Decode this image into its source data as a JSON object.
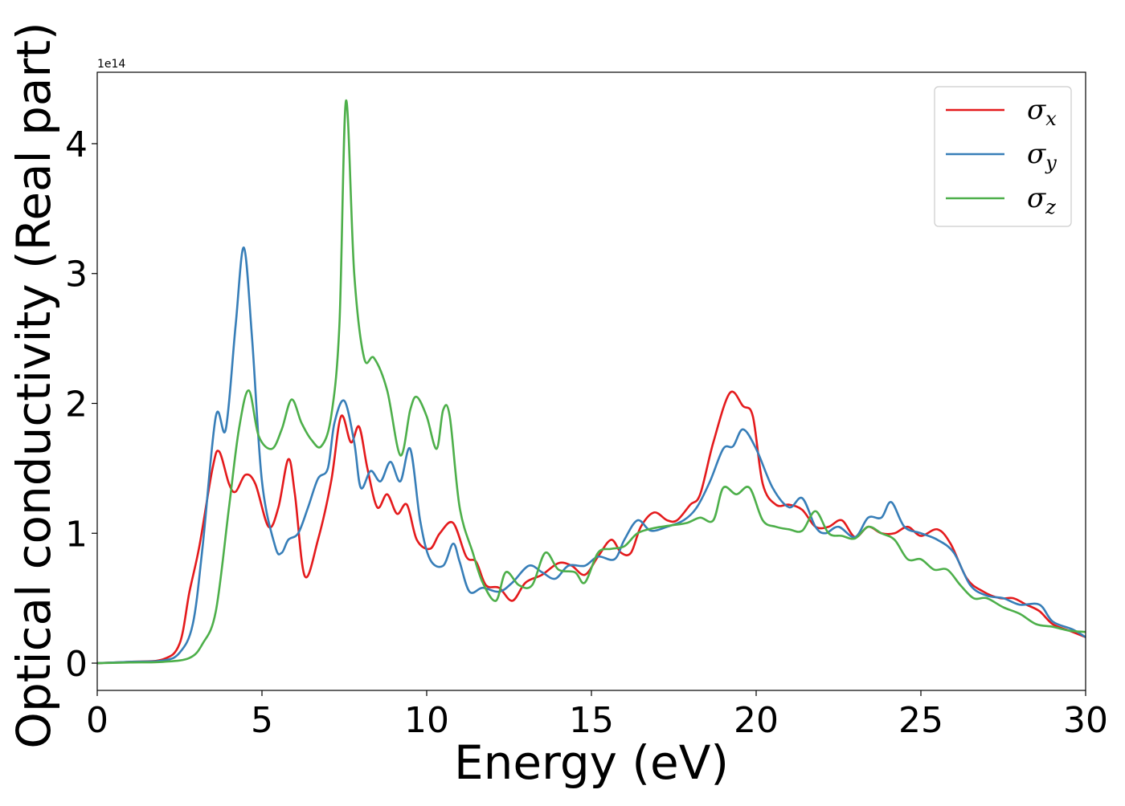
{
  "chart_data": {
    "type": "line",
    "xlabel": "Energy (eV)",
    "ylabel": "Optical conductivity (Real part)",
    "y_offset_label": "1e14",
    "xlim": [
      0,
      30
    ],
    "ylim": [
      -0.21,
      4.55
    ],
    "x_ticks": [
      0,
      5,
      10,
      15,
      20,
      25,
      30
    ],
    "x_tick_labels": [
      "0",
      "5",
      "10",
      "15",
      "20",
      "25",
      "30"
    ],
    "y_ticks": [
      0,
      1,
      2,
      3,
      4
    ],
    "y_tick_labels": [
      "0",
      "1",
      "2",
      "3",
      "4"
    ],
    "grid": false,
    "legend_position": "top-right",
    "series": [
      {
        "name": "σx",
        "base": "σ",
        "sub": "x",
        "color": "#e41a1c",
        "points": [
          [
            0,
            0
          ],
          [
            1,
            0.01
          ],
          [
            2,
            0.03
          ],
          [
            2.5,
            0.15
          ],
          [
            2.8,
            0.55
          ],
          [
            3.1,
            0.9
          ],
          [
            3.5,
            1.5
          ],
          [
            3.7,
            1.63
          ],
          [
            4.0,
            1.38
          ],
          [
            4.2,
            1.32
          ],
          [
            4.5,
            1.45
          ],
          [
            4.8,
            1.38
          ],
          [
            5.2,
            1.05
          ],
          [
            5.5,
            1.2
          ],
          [
            5.8,
            1.57
          ],
          [
            6.0,
            1.3
          ],
          [
            6.3,
            0.67
          ],
          [
            6.7,
            0.95
          ],
          [
            7.1,
            1.4
          ],
          [
            7.4,
            1.9
          ],
          [
            7.7,
            1.7
          ],
          [
            7.95,
            1.82
          ],
          [
            8.2,
            1.5
          ],
          [
            8.5,
            1.2
          ],
          [
            8.8,
            1.3
          ],
          [
            9.1,
            1.15
          ],
          [
            9.4,
            1.22
          ],
          [
            9.7,
            0.95
          ],
          [
            10.1,
            0.88
          ],
          [
            10.4,
            1.0
          ],
          [
            10.8,
            1.08
          ],
          [
            11.2,
            0.82
          ],
          [
            11.5,
            0.78
          ],
          [
            11.8,
            0.6
          ],
          [
            12.2,
            0.58
          ],
          [
            12.6,
            0.48
          ],
          [
            13.0,
            0.62
          ],
          [
            13.5,
            0.68
          ],
          [
            14.0,
            0.77
          ],
          [
            14.4,
            0.75
          ],
          [
            14.8,
            0.68
          ],
          [
            15.2,
            0.82
          ],
          [
            15.6,
            0.95
          ],
          [
            15.9,
            0.85
          ],
          [
            16.2,
            0.85
          ],
          [
            16.5,
            1.05
          ],
          [
            16.9,
            1.16
          ],
          [
            17.3,
            1.1
          ],
          [
            17.6,
            1.1
          ],
          [
            18.0,
            1.22
          ],
          [
            18.3,
            1.3
          ],
          [
            18.7,
            1.7
          ],
          [
            19.2,
            2.08
          ],
          [
            19.6,
            1.98
          ],
          [
            19.9,
            1.9
          ],
          [
            20.2,
            1.38
          ],
          [
            20.6,
            1.22
          ],
          [
            21.0,
            1.22
          ],
          [
            21.4,
            1.18
          ],
          [
            21.8,
            1.05
          ],
          [
            22.2,
            1.05
          ],
          [
            22.6,
            1.1
          ],
          [
            23.0,
            0.97
          ],
          [
            23.4,
            1.05
          ],
          [
            23.8,
            1.0
          ],
          [
            24.2,
            1.0
          ],
          [
            24.6,
            1.05
          ],
          [
            25.0,
            0.98
          ],
          [
            25.5,
            1.03
          ],
          [
            25.9,
            0.92
          ],
          [
            26.4,
            0.65
          ],
          [
            26.9,
            0.55
          ],
          [
            27.4,
            0.5
          ],
          [
            27.8,
            0.5
          ],
          [
            28.2,
            0.45
          ],
          [
            28.6,
            0.4
          ],
          [
            29.0,
            0.3
          ],
          [
            29.5,
            0.25
          ],
          [
            30.0,
            0.2
          ]
        ]
      },
      {
        "name": "σy",
        "base": "σ",
        "sub": "y",
        "color": "#377eb8",
        "points": [
          [
            0,
            0
          ],
          [
            1,
            0.01
          ],
          [
            2,
            0.02
          ],
          [
            2.5,
            0.08
          ],
          [
            2.9,
            0.3
          ],
          [
            3.2,
            0.9
          ],
          [
            3.6,
            1.9
          ],
          [
            3.9,
            1.8
          ],
          [
            4.2,
            2.6
          ],
          [
            4.45,
            3.2
          ],
          [
            4.7,
            2.5
          ],
          [
            5.0,
            1.4
          ],
          [
            5.4,
            0.9
          ],
          [
            5.6,
            0.85
          ],
          [
            5.8,
            0.95
          ],
          [
            6.1,
            1.0
          ],
          [
            6.4,
            1.2
          ],
          [
            6.7,
            1.42
          ],
          [
            7.0,
            1.5
          ],
          [
            7.2,
            1.85
          ],
          [
            7.5,
            2.02
          ],
          [
            7.8,
            1.7
          ],
          [
            8.0,
            1.35
          ],
          [
            8.3,
            1.48
          ],
          [
            8.6,
            1.4
          ],
          [
            8.9,
            1.55
          ],
          [
            9.2,
            1.4
          ],
          [
            9.5,
            1.65
          ],
          [
            9.8,
            1.1
          ],
          [
            10.1,
            0.8
          ],
          [
            10.5,
            0.75
          ],
          [
            10.8,
            0.92
          ],
          [
            11.0,
            0.78
          ],
          [
            11.3,
            0.55
          ],
          [
            11.7,
            0.58
          ],
          [
            12.2,
            0.55
          ],
          [
            12.6,
            0.62
          ],
          [
            13.1,
            0.75
          ],
          [
            13.5,
            0.7
          ],
          [
            13.9,
            0.65
          ],
          [
            14.3,
            0.75
          ],
          [
            14.8,
            0.75
          ],
          [
            15.2,
            0.82
          ],
          [
            15.7,
            0.8
          ],
          [
            16.0,
            0.95
          ],
          [
            16.4,
            1.1
          ],
          [
            16.8,
            1.02
          ],
          [
            17.3,
            1.05
          ],
          [
            17.8,
            1.1
          ],
          [
            18.2,
            1.2
          ],
          [
            18.6,
            1.4
          ],
          [
            19.0,
            1.65
          ],
          [
            19.3,
            1.67
          ],
          [
            19.6,
            1.8
          ],
          [
            20.0,
            1.65
          ],
          [
            20.5,
            1.35
          ],
          [
            21.0,
            1.2
          ],
          [
            21.4,
            1.27
          ],
          [
            21.8,
            1.05
          ],
          [
            22.1,
            1.0
          ],
          [
            22.5,
            1.05
          ],
          [
            23.0,
            0.97
          ],
          [
            23.4,
            1.12
          ],
          [
            23.8,
            1.12
          ],
          [
            24.1,
            1.24
          ],
          [
            24.5,
            1.05
          ],
          [
            25.0,
            1.0
          ],
          [
            25.5,
            0.95
          ],
          [
            26.0,
            0.85
          ],
          [
            26.5,
            0.6
          ],
          [
            27.0,
            0.52
          ],
          [
            27.5,
            0.5
          ],
          [
            28.0,
            0.45
          ],
          [
            28.6,
            0.45
          ],
          [
            29.0,
            0.32
          ],
          [
            29.6,
            0.26
          ],
          [
            30.0,
            0.2
          ]
        ]
      },
      {
        "name": "σz",
        "base": "σ",
        "sub": "z",
        "color": "#4daf4a",
        "points": [
          [
            0,
            0
          ],
          [
            1,
            0.005
          ],
          [
            2,
            0.01
          ],
          [
            2.8,
            0.04
          ],
          [
            3.2,
            0.15
          ],
          [
            3.6,
            0.4
          ],
          [
            4.0,
            1.2
          ],
          [
            4.3,
            1.8
          ],
          [
            4.6,
            2.1
          ],
          [
            4.9,
            1.75
          ],
          [
            5.3,
            1.65
          ],
          [
            5.6,
            1.8
          ],
          [
            5.9,
            2.03
          ],
          [
            6.2,
            1.85
          ],
          [
            6.5,
            1.72
          ],
          [
            6.8,
            1.67
          ],
          [
            7.1,
            1.9
          ],
          [
            7.35,
            2.6
          ],
          [
            7.55,
            4.33
          ],
          [
            7.8,
            3.0
          ],
          [
            8.1,
            2.35
          ],
          [
            8.4,
            2.35
          ],
          [
            8.8,
            2.1
          ],
          [
            9.2,
            1.6
          ],
          [
            9.5,
            1.95
          ],
          [
            9.7,
            2.05
          ],
          [
            10.0,
            1.9
          ],
          [
            10.3,
            1.65
          ],
          [
            10.5,
            1.95
          ],
          [
            10.7,
            1.9
          ],
          [
            11.0,
            1.2
          ],
          [
            11.4,
            0.85
          ],
          [
            11.7,
            0.62
          ],
          [
            12.1,
            0.48
          ],
          [
            12.4,
            0.7
          ],
          [
            12.8,
            0.6
          ],
          [
            13.2,
            0.6
          ],
          [
            13.6,
            0.85
          ],
          [
            14.0,
            0.72
          ],
          [
            14.5,
            0.7
          ],
          [
            14.8,
            0.62
          ],
          [
            15.2,
            0.85
          ],
          [
            15.6,
            0.88
          ],
          [
            16.0,
            0.9
          ],
          [
            16.4,
            1.0
          ],
          [
            16.9,
            1.04
          ],
          [
            17.4,
            1.06
          ],
          [
            17.9,
            1.08
          ],
          [
            18.3,
            1.12
          ],
          [
            18.7,
            1.1
          ],
          [
            19.0,
            1.35
          ],
          [
            19.4,
            1.3
          ],
          [
            19.8,
            1.35
          ],
          [
            20.2,
            1.1
          ],
          [
            20.6,
            1.05
          ],
          [
            21.0,
            1.03
          ],
          [
            21.4,
            1.02
          ],
          [
            21.8,
            1.17
          ],
          [
            22.2,
            1.0
          ],
          [
            22.6,
            0.98
          ],
          [
            23.0,
            0.96
          ],
          [
            23.4,
            1.05
          ],
          [
            23.8,
            1.0
          ],
          [
            24.2,
            0.95
          ],
          [
            24.6,
            0.8
          ],
          [
            25.0,
            0.8
          ],
          [
            25.4,
            0.72
          ],
          [
            25.8,
            0.72
          ],
          [
            26.2,
            0.6
          ],
          [
            26.6,
            0.5
          ],
          [
            27.0,
            0.5
          ],
          [
            27.5,
            0.43
          ],
          [
            28.0,
            0.38
          ],
          [
            28.5,
            0.3
          ],
          [
            29.0,
            0.28
          ],
          [
            29.5,
            0.25
          ],
          [
            30.0,
            0.24
          ]
        ]
      }
    ]
  }
}
